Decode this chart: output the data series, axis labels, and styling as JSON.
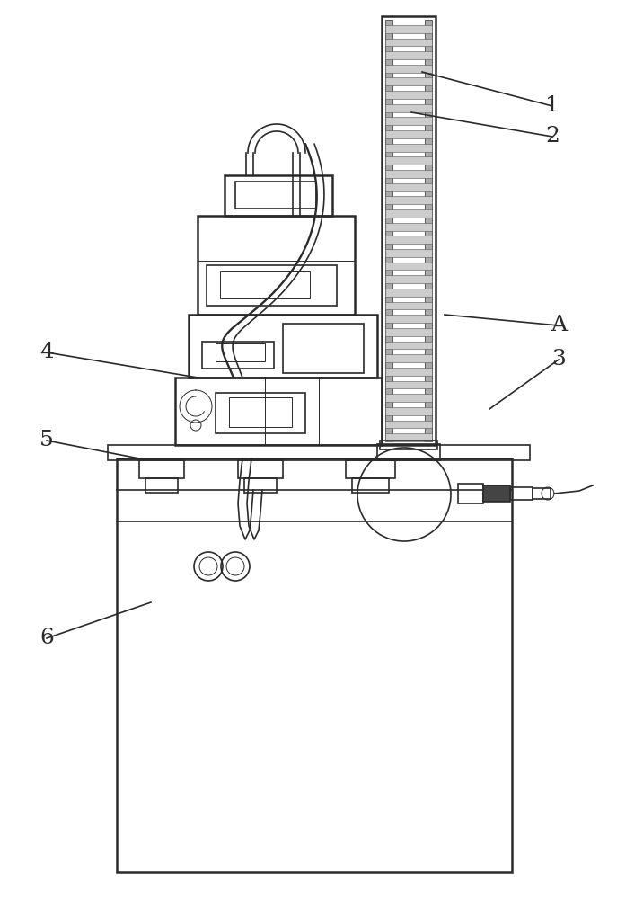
{
  "bg_color": "#ffffff",
  "line_color": "#2a2a2a",
  "lw_thick": 1.8,
  "lw_med": 1.2,
  "lw_thin": 0.7,
  "fig_width": 6.87,
  "fig_height": 10.0
}
